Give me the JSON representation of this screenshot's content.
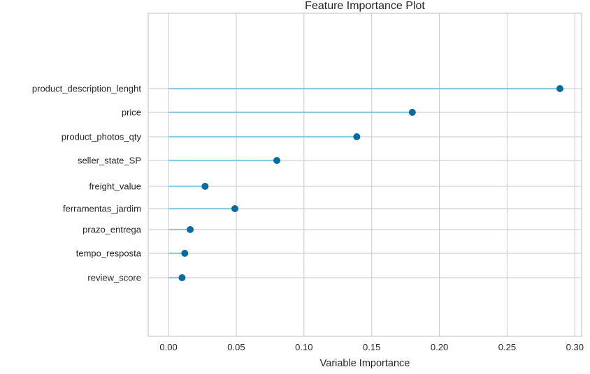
{
  "chart_data": {
    "type": "lollipop",
    "title": "Feature Importance Plot",
    "xlabel": "Variable Importance",
    "ylabel": "",
    "xlim": [
      -0.015,
      0.305
    ],
    "xticks": [
      "0.00",
      "0.05",
      "0.10",
      "0.15",
      "0.20",
      "0.25",
      "0.30"
    ],
    "orientation": "horizontal",
    "grid": true,
    "categories": [
      "product_description_lenght",
      "price",
      "product_photos_qty",
      "seller_state_SP",
      "freight_value",
      "ferramentas_jardim",
      "prazo_entrega",
      "tempo_resposta",
      "review_score"
    ],
    "values": [
      0.289,
      0.18,
      0.139,
      0.08,
      0.027,
      0.049,
      0.016,
      0.012,
      0.01
    ],
    "colors": {
      "stem": "#88cce6",
      "marker": "#0a6b9c",
      "grid": "#d0d0d0",
      "frame": "#c8c8c8"
    }
  }
}
